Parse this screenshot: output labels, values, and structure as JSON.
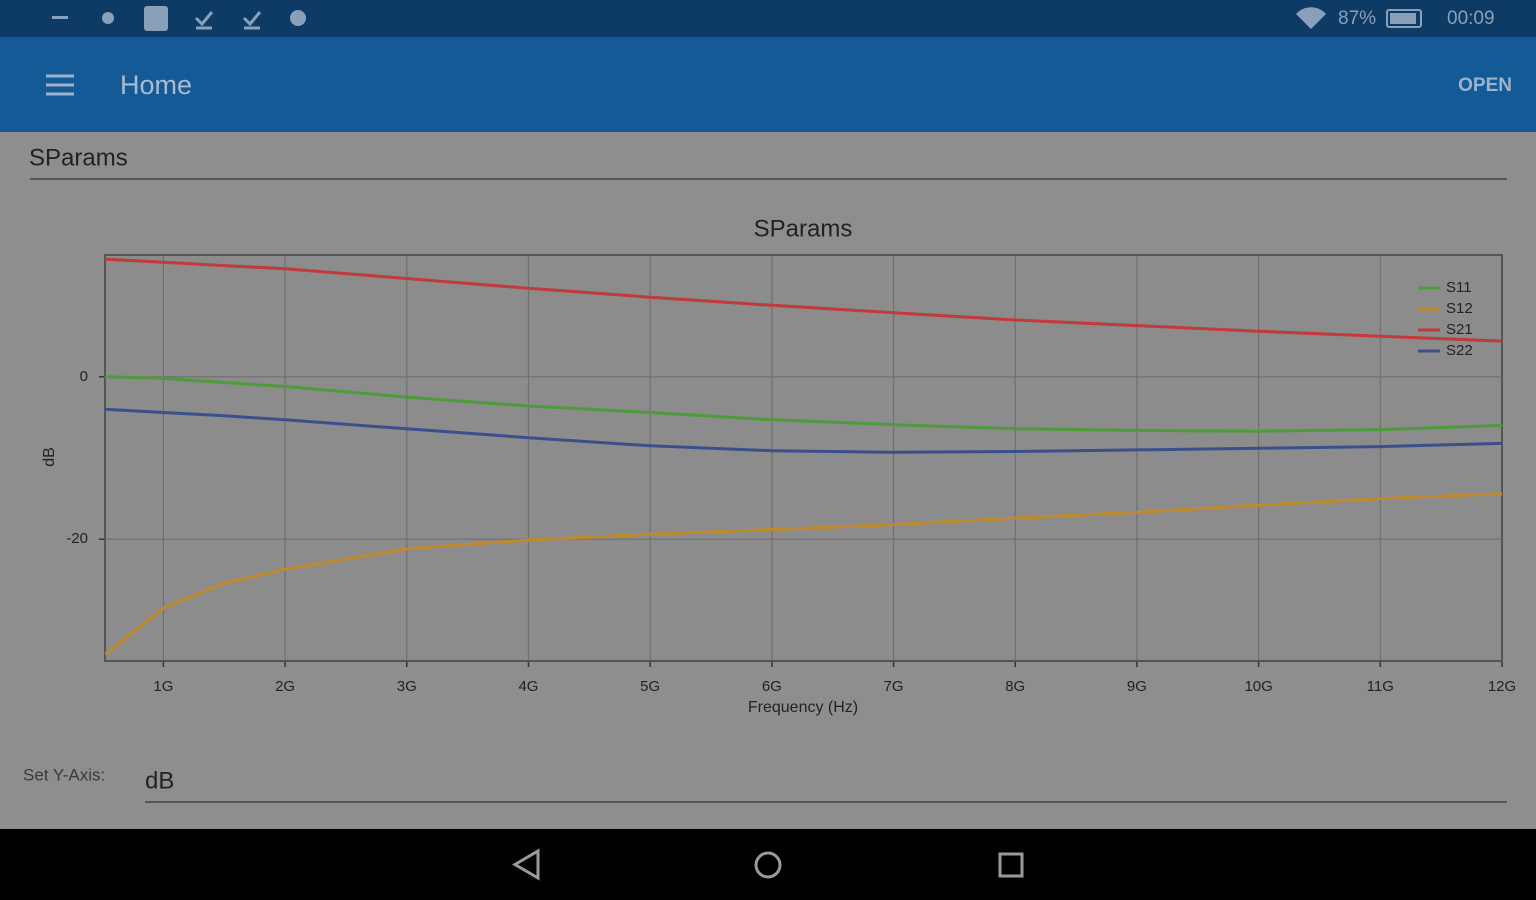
{
  "status_bar": {
    "battery": "87%",
    "time": "00:09"
  },
  "app_bar": {
    "title": "Home",
    "action": "OPEN"
  },
  "spinner": "SParams",
  "chart_data": {
    "type": "line",
    "title": "SParams",
    "x_label": "Frequency (Hz)",
    "y_label": "dB",
    "x": [
      520000000,
      1000000000,
      1500000000,
      2000000000,
      3000000000,
      4000000000,
      5000000000,
      6000000000,
      7000000000,
      8000000000,
      9000000000,
      10000000000,
      11000000000,
      12000000000
    ],
    "series": [
      {
        "name": "S11",
        "color": "#4f9a3b",
        "values": [
          0,
          -0.2,
          -0.7,
          -1.2,
          -2.5,
          -3.6,
          -4.4,
          -5.3,
          -5.9,
          -6.4,
          -6.6,
          -6.7,
          -6.5,
          -6.0
        ]
      },
      {
        "name": "S12",
        "color": "#c08a2c",
        "values": [
          -34.2,
          -28.5,
          -25.4,
          -23.7,
          -21.2,
          -20.1,
          -19.4,
          -18.8,
          -18.2,
          -17.4,
          -16.7,
          -15.8,
          -15.0,
          -14.4
        ]
      },
      {
        "name": "S21",
        "color": "#c23a3c",
        "values": [
          14.5,
          14.1,
          13.7,
          13.3,
          12.1,
          10.9,
          9.8,
          8.8,
          7.9,
          7.0,
          6.3,
          5.6,
          5.0,
          4.4
        ]
      },
      {
        "name": "S22",
        "color": "#3b4f8c",
        "values": [
          -4.0,
          -4.4,
          -4.8,
          -5.3,
          -6.4,
          -7.5,
          -8.5,
          -9.1,
          -9.3,
          -9.2,
          -9.0,
          -8.8,
          -8.6,
          -8.2
        ]
      }
    ],
    "xlim": [
      520000000,
      12000000000
    ],
    "xticks": [
      {
        "value": 1000000000,
        "label": "1G"
      },
      {
        "value": 2000000000,
        "label": "2G"
      },
      {
        "value": 3000000000,
        "label": "3G"
      },
      {
        "value": 4000000000,
        "label": "4G"
      },
      {
        "value": 5000000000,
        "label": "5G"
      },
      {
        "value": 6000000000,
        "label": "6G"
      },
      {
        "value": 7000000000,
        "label": "7G"
      },
      {
        "value": 8000000000,
        "label": "8G"
      },
      {
        "value": 9000000000,
        "label": "9G"
      },
      {
        "value": 10000000000,
        "label": "10G"
      },
      {
        "value": 11000000000,
        "label": "11G"
      },
      {
        "value": 12000000000,
        "label": "12G"
      }
    ],
    "ylim": [
      -35,
      15
    ],
    "yticks": [
      -20,
      0
    ],
    "grid": true,
    "legend": "upper right"
  },
  "y_axis_setting": {
    "label": "Set Y-Axis:",
    "value": "dB"
  }
}
